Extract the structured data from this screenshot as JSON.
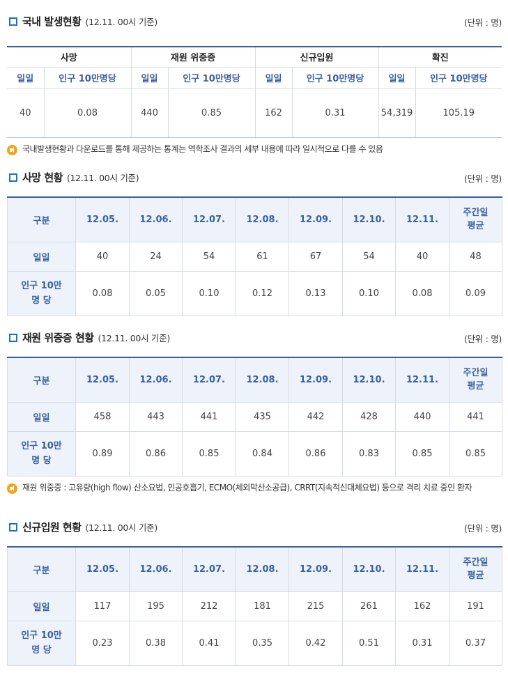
{
  "domestic": {
    "title": "국내 발생현황",
    "basis": "(12.11. 00시 기준)",
    "unit": "(단위 : 명)",
    "groups": [
      "사망",
      "재원 위중증",
      "신규입원",
      "확진"
    ],
    "sub_daily": "일일",
    "sub_per": "인구 10만명당",
    "values": [
      "40",
      "0.08",
      "440",
      "0.85",
      "162",
      "0.31",
      "54,319",
      "105.19"
    ],
    "note": "국내발생현황과 다운로드를 통해 제공하는 통계는 역학조사 결과의 세부 내용에 따라 일시적으로 다를 수 있음"
  },
  "deaths": {
    "title": "사망 현황",
    "basis": "(12.11. 00시 기준)",
    "unit": "(단위 : 명)",
    "header_label": "구분",
    "dates": [
      "12.05.",
      "12.06.",
      "12.07.",
      "12.08.",
      "12.09.",
      "12.10.",
      "12.11."
    ],
    "avg_label": [
      "주간일",
      "평균"
    ],
    "row1_label": "일일",
    "row1": [
      "40",
      "24",
      "54",
      "61",
      "67",
      "54",
      "40",
      "48"
    ],
    "row2_label": [
      "인구 10만",
      "명 당"
    ],
    "row2": [
      "0.08",
      "0.05",
      "0.10",
      "0.12",
      "0.13",
      "0.10",
      "0.08",
      "0.09"
    ]
  },
  "severe": {
    "title": "재원 위중증 현황",
    "basis": "(12.11. 00시 기준)",
    "unit": "(단위 : 명)",
    "header_label": "구분",
    "dates": [
      "12.05.",
      "12.06.",
      "12.07.",
      "12.08.",
      "12.09.",
      "12.10.",
      "12.11."
    ],
    "avg_label": [
      "주간일",
      "평균"
    ],
    "row1_label": "일일",
    "row1": [
      "458",
      "443",
      "441",
      "435",
      "442",
      "428",
      "440",
      "441"
    ],
    "row2_label": [
      "인구 10만",
      "명 당"
    ],
    "row2": [
      "0.89",
      "0.86",
      "0.85",
      "0.84",
      "0.86",
      "0.83",
      "0.85",
      "0.85"
    ],
    "note": "재원 위중증 : 고유량(high flow) 산소요법, 인공호흡기, ECMO(체외막산소공급), CRRT(지속적신대체요법) 등으로 격리 치료 중인 환자"
  },
  "admissions": {
    "title": "신규입원 현황",
    "basis": "(12.11. 00시 기준)",
    "unit": "(단위 : 명)",
    "header_label": "구분",
    "dates": [
      "12.05.",
      "12.06.",
      "12.07.",
      "12.08.",
      "12.09.",
      "12.10.",
      "12.11."
    ],
    "avg_label": [
      "주간일",
      "평균"
    ],
    "row1_label": "일일",
    "row1": [
      "117",
      "195",
      "212",
      "181",
      "215",
      "261",
      "162",
      "191"
    ],
    "row2_label": [
      "인구 10만",
      "명 당"
    ],
    "row2": [
      "0.23",
      "0.38",
      "0.41",
      "0.35",
      "0.42",
      "0.51",
      "0.31",
      "0.37"
    ]
  }
}
